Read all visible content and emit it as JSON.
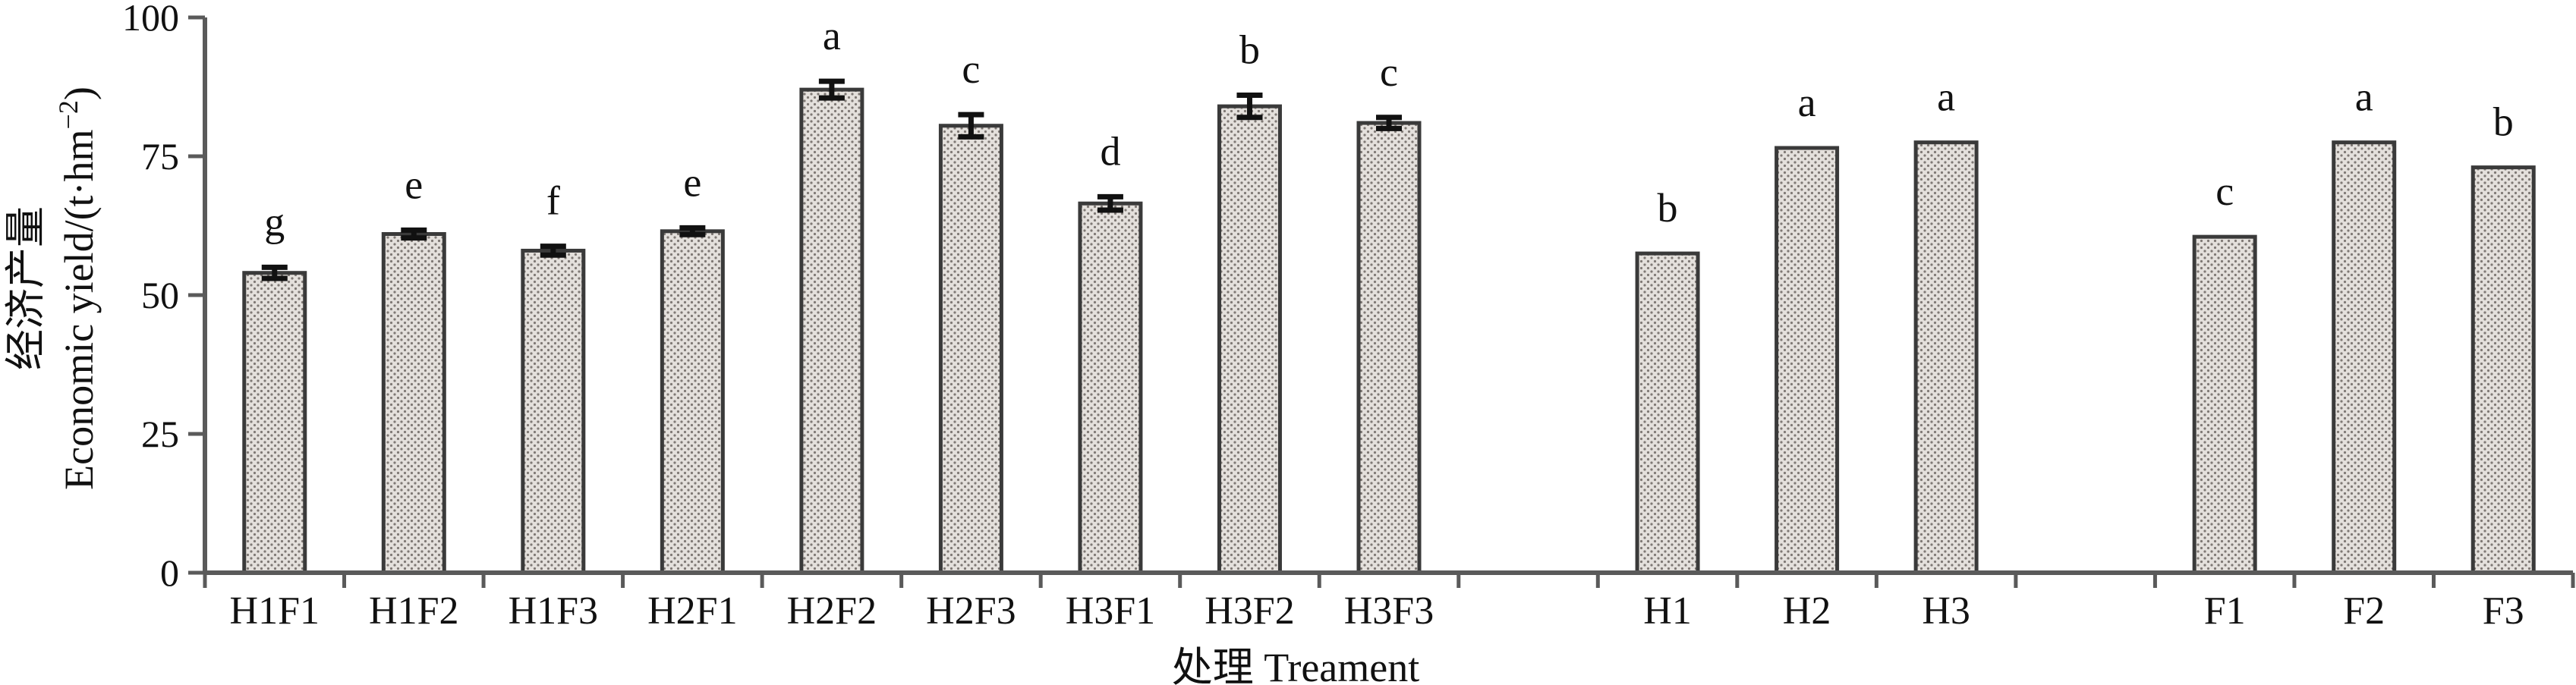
{
  "chart_data": {
    "type": "bar",
    "ylabel_cn": "经济产量",
    "ylabel_en": "Economic yield/(t·hm",
    "ylabel_unit_sup": "−2",
    "ylabel_close": ")",
    "xlabel": "处理 Treament",
    "ylim": [
      0,
      100
    ],
    "yticks": [
      "0",
      "25",
      "50",
      "75",
      "100"
    ],
    "ytick_values": [
      0,
      25,
      50,
      75,
      100
    ],
    "grid": false,
    "categories": [
      "H1F1",
      "H1F2",
      "H1F3",
      "H2F1",
      "H2F2",
      "H2F3",
      "H3F1",
      "H3F2",
      "H3F3",
      "",
      "H1",
      "H2",
      "H3",
      "",
      "F1",
      "F2",
      "F3"
    ],
    "values": [
      54,
      61,
      58,
      61.5,
      87,
      80.5,
      66.5,
      84,
      81,
      null,
      57.5,
      76.5,
      77.5,
      null,
      60.5,
      77.5,
      73
    ],
    "errors": [
      1,
      0.7,
      0.8,
      0.6,
      1.5,
      2,
      1.2,
      2,
      1,
      null,
      0,
      0,
      0,
      null,
      0,
      0,
      0
    ],
    "significance": [
      "g",
      "e",
      "f",
      "e",
      "a",
      "c",
      "d",
      "b",
      "c",
      "",
      "b",
      "a",
      "a",
      "",
      "c",
      "a",
      "b"
    ]
  }
}
